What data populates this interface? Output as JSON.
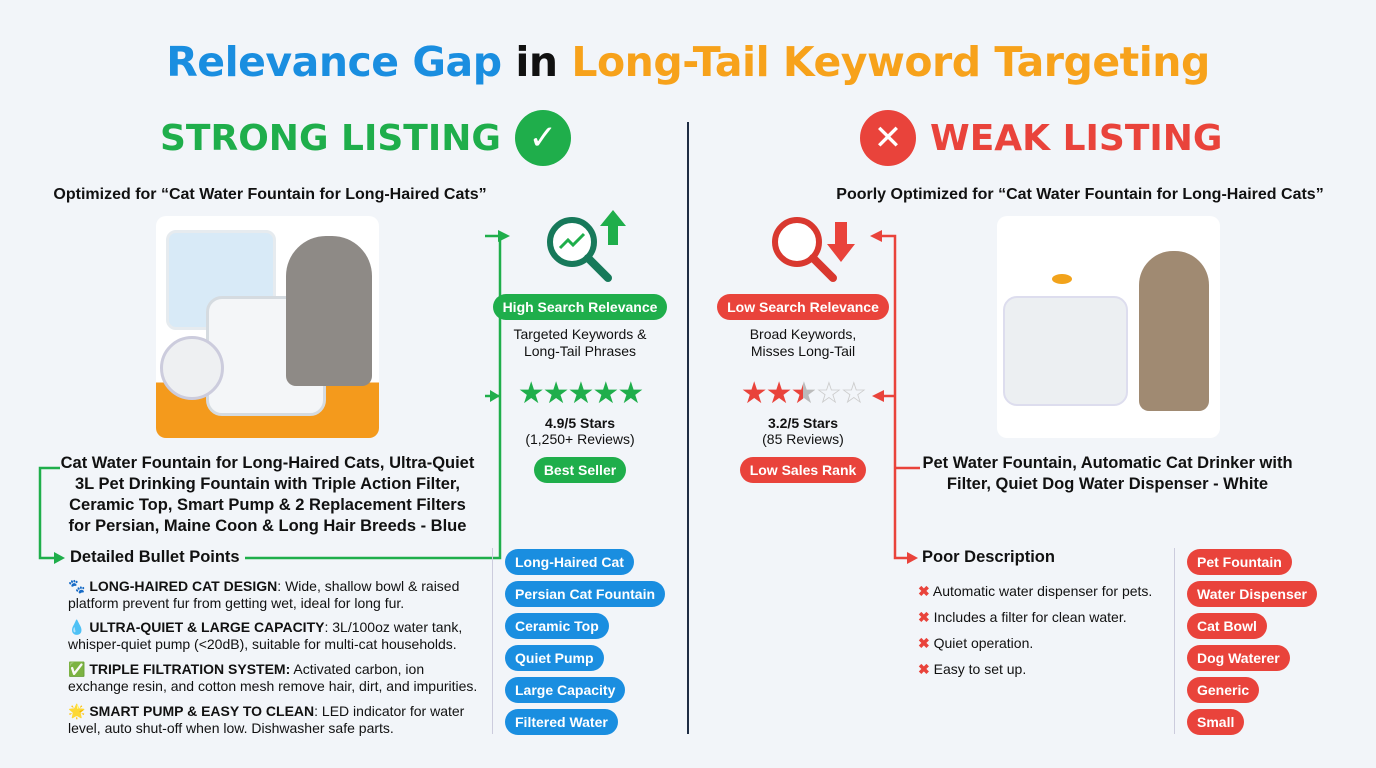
{
  "title": {
    "part1": "Relevance Gap",
    "part2": "in",
    "part3": "Long-Tail Keyword Targeting"
  },
  "colors": {
    "blue": "#1a8ee0",
    "orange": "#f7a21b",
    "green": "#1fae4b",
    "red": "#e9433b"
  },
  "strong": {
    "heading": "STRONG LISTING",
    "icon": "check-circle-icon",
    "subtitle": "Optimized for “Cat Water Fountain for Long-Haired Cats”",
    "relevance_badge": "High Search Relevance",
    "relevance_text": [
      "Targeted Keywords &",
      "Long-Tail Phrases"
    ],
    "rating": 4.9,
    "rating_text": "4.9/5 Stars",
    "reviews": "(1,250+ Reviews)",
    "rank_badge": "Best Seller",
    "product_title": [
      "Cat Water Fountain for Long-Haired Cats, Ultra-Quiet",
      "3L Pet Drinking Fountain with Triple Action Filter,",
      "Ceramic Top, Smart Pump & 2 Replacement Filters",
      "for Persian, Maine Coon & Long Hair Breeds - Blue"
    ],
    "bullets_heading": "Detailed Bullet Points",
    "bullets": [
      {
        "icon": "paw-icon",
        "glyph": "🐾",
        "label": "LONG-HAIRED CAT DESIGN",
        "text": ": Wide, shallow bowl & raised platform prevent fur from getting wet, ideal for long fur."
      },
      {
        "icon": "droplet-icon",
        "glyph": "💧",
        "label": "ULTRA-QUIET & LARGE CAPACITY",
        "text": ": 3L/100oz water tank, whisper-quiet pump (<20dB), suitable for multi-cat households."
      },
      {
        "icon": "check-box-icon",
        "glyph": "✅",
        "label": "TRIPLE FILTRATION SYSTEM:",
        "text": " Activated carbon, ion exchange resin, and cotton mesh remove hair, dirt, and impurities."
      },
      {
        "icon": "sparkle-icon",
        "glyph": "🌟",
        "label": "SMART PUMP & EASY TO CLEAN",
        "text": ": LED indicator for water level, auto shut-off when low. Dishwasher safe parts."
      }
    ],
    "tags": [
      "Long-Haired Cat",
      "Persian Cat Fountain",
      "Ceramic Top",
      "Quiet Pump",
      "Large Capacity",
      "Filtered Water"
    ]
  },
  "weak": {
    "heading": "WEAK LISTING",
    "icon": "x-circle-icon",
    "subtitle": "Poorly Optimized for “Cat Water Fountain for Long-Haired Cats”",
    "relevance_badge": "Low Search Relevance",
    "relevance_text": [
      "Broad Keywords,",
      "Misses Long-Tail"
    ],
    "rating": 3.2,
    "rating_text": "3.2/5 Stars",
    "reviews": "(85 Reviews)",
    "rank_badge": "Low Sales Rank",
    "product_title": [
      "Pet Water Fountain, Automatic Cat Drinker with",
      "Filter, Quiet Dog Water Dispenser - White"
    ],
    "bullets_heading": "Poor Description",
    "bullets": [
      "Automatic water dispenser for pets.",
      "Includes a filter for clean water.",
      "Quiet operation.",
      "Easy to set up."
    ],
    "tags": [
      "Pet Fountain",
      "Water Dispenser",
      "Cat Bowl",
      "Dog Waterer",
      "Generic",
      "Small"
    ]
  }
}
